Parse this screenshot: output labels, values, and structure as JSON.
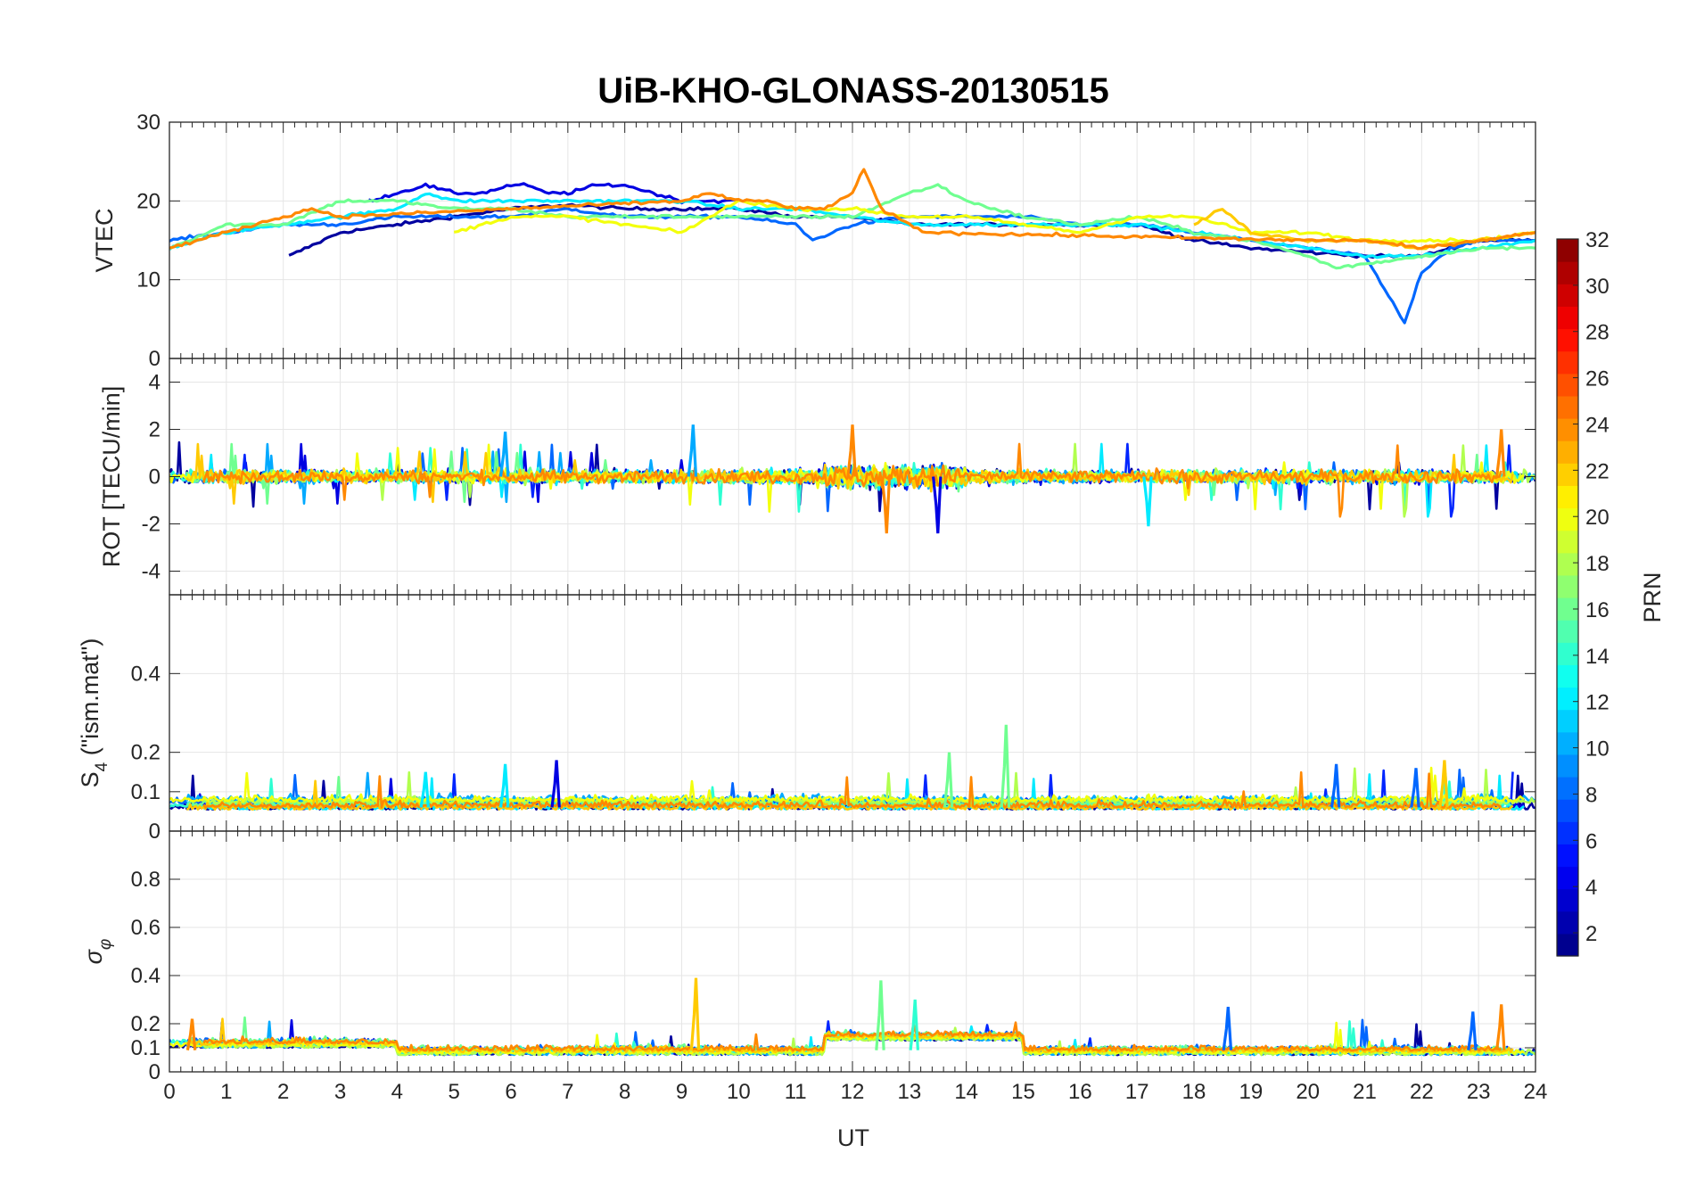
{
  "chart_data": {
    "type": "line",
    "title": "UiB-KHO-GLONASS-20130515",
    "xlabel": "UT",
    "xlim": [
      0,
      24
    ],
    "xticks": [
      "0",
      "1",
      "2",
      "3",
      "4",
      "5",
      "6",
      "7",
      "8",
      "9",
      "10",
      "11",
      "12",
      "13",
      "14",
      "15",
      "16",
      "17",
      "18",
      "19",
      "20",
      "21",
      "22",
      "23",
      "24"
    ],
    "colorbar": {
      "label": "PRN",
      "range": [
        1,
        32
      ],
      "ticks": [
        "2",
        "4",
        "6",
        "8",
        "10",
        "12",
        "14",
        "16",
        "18",
        "20",
        "22",
        "24",
        "26",
        "28",
        "30",
        "32"
      ],
      "colormap": "jet"
    },
    "panels": [
      {
        "id": "vtec",
        "ylabel": "VTEC",
        "ylim": [
          0,
          30
        ],
        "yticks": [
          "0",
          "10",
          "20",
          "30"
        ],
        "series": [
          {
            "name": "PRN 2",
            "prn": 2,
            "x": [
              2.1,
              3,
              4,
              5,
              6,
              7,
              8,
              9,
              10,
              11,
              12,
              13,
              14,
              15,
              16,
              17,
              18,
              19,
              20,
              21,
              22,
              23,
              24
            ],
            "y": [
              13,
              16,
              17,
              18,
              19,
              19.5,
              19,
              19,
              19,
              18,
              18,
              17,
              17,
              17,
              17,
              17,
              15,
              14,
              13.5,
              13,
              13,
              15,
              15
            ]
          },
          {
            "name": "PRN 4",
            "prn": 4,
            "x": [
              3.5,
              4,
              4.5,
              5,
              5.5,
              6,
              6.3,
              6.6,
              7,
              7.5,
              8,
              8.5,
              9,
              9.5,
              10
            ],
            "y": [
              20,
              21,
              22,
              21,
              21,
              22,
              22,
              21,
              21,
              22,
              22,
              21,
              20,
              20,
              20
            ]
          },
          {
            "name": "PRN 8",
            "prn": 8,
            "x": [
              0,
              1,
              2,
              3,
              4,
              5,
              6,
              7,
              8,
              9,
              10,
              11,
              11.3,
              12,
              13,
              14,
              15,
              16,
              17,
              18,
              19,
              20,
              21,
              21.7,
              22,
              22.5,
              23,
              24
            ],
            "y": [
              15,
              16,
              17,
              17,
              18,
              18,
              18,
              19,
              18,
              18,
              18,
              17,
              15,
              17,
              18,
              18,
              18,
              17,
              17,
              16,
              15,
              14,
              13,
              4.5,
              11,
              14,
              15,
              15
            ]
          },
          {
            "name": "PRN 12",
            "prn": 12,
            "x": [
              0,
              1,
              2,
              3,
              4,
              4.5,
              5,
              6,
              7,
              8,
              9,
              10,
              11,
              12,
              13,
              14,
              15,
              16,
              17,
              18,
              19,
              20,
              21,
              22,
              23,
              24
            ],
            "y": [
              14,
              16,
              17,
              18,
              19,
              21,
              20,
              20,
              20,
              20,
              20,
              19,
              19,
              18,
              17,
              17,
              17,
              17,
              17,
              16,
              15,
              14,
              13,
              13,
              14,
              15
            ]
          },
          {
            "name": "PRN 16",
            "prn": 16,
            "x": [
              0,
              1,
              2,
              3,
              3.5,
              4,
              5,
              6,
              7,
              8,
              9,
              10,
              11,
              12,
              13,
              13.5,
              14,
              15,
              16,
              17,
              18,
              19,
              20,
              20.5,
              21,
              22,
              23,
              24
            ],
            "y": [
              14,
              17,
              17,
              20,
              20,
              20,
              19,
              19,
              18,
              18,
              18,
              18,
              18,
              18,
              21,
              22,
              20,
              18,
              17,
              18,
              16,
              15,
              13,
              11.5,
              12,
              13,
              14,
              14
            ]
          },
          {
            "name": "PRN 20",
            "prn": 20,
            "x": [
              5,
              6,
              7,
              8,
              9,
              10,
              11,
              12,
              13,
              14,
              15,
              16,
              17,
              18,
              19,
              20,
              21,
              22,
              23,
              24
            ],
            "y": [
              16,
              18,
              18,
              17,
              16,
              20,
              19,
              19,
              18,
              18,
              17,
              16,
              18,
              18,
              16,
              16,
              15,
              15,
              15,
              16
            ]
          },
          {
            "name": "PRN 22",
            "prn": 22,
            "x": [
              18,
              18.5,
              19,
              20,
              21,
              22,
              23,
              24
            ],
            "y": [
              17,
              19,
              16,
              15,
              15,
              14,
              15,
              16
            ]
          },
          {
            "name": "PRN 24",
            "prn": 24,
            "x": [
              0,
              0.5,
              1,
              1.5,
              2,
              2.5,
              3,
              9,
              9.5,
              10,
              10.5,
              11,
              11.5,
              12,
              12.2,
              12.5,
              13,
              13.3,
              20,
              21,
              22,
              23,
              24
            ],
            "y": [
              14,
              15,
              16,
              17,
              18,
              19,
              18,
              20,
              21,
              20,
              20,
              19,
              19,
              21,
              24,
              19,
              17,
              16,
              15,
              15,
              14,
              15,
              16
            ]
          }
        ]
      },
      {
        "id": "rot",
        "ylabel": "ROT [TECU/min]",
        "ylim": [
          -5,
          5
        ],
        "yticks": [
          "-4",
          "-2",
          "0",
          "2",
          "4"
        ]
      },
      {
        "id": "s4",
        "ylabel": "S4 (\"ism.mat\")",
        "ylim": [
          0,
          0.6
        ],
        "yticks": [
          "0",
          "0.1",
          "0.2",
          "0.4"
        ]
      },
      {
        "id": "sigma",
        "ylabel": "σφ",
        "ylim": [
          0,
          1
        ],
        "yticks": [
          "0",
          "0.1",
          "0.2",
          "0.4",
          "0.6",
          "0.8"
        ]
      }
    ],
    "prn_list": [
      2,
      4,
      6,
      8,
      10,
      12,
      14,
      16,
      18,
      20,
      22,
      24
    ]
  }
}
